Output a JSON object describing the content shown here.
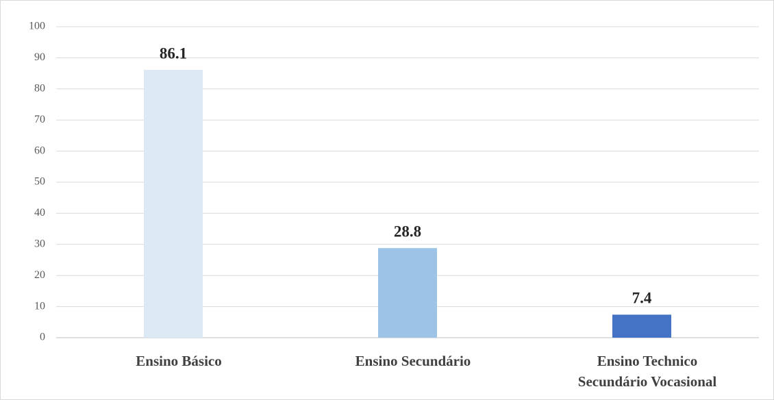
{
  "chart_data": {
    "type": "bar",
    "categories": [
      "Ensino Básico",
      "Ensino Secundário",
      "Ensino Technico Secundário Vocasional"
    ],
    "values": [
      86.1,
      28.8,
      7.4
    ],
    "colors": [
      "#dde8f5",
      "#9dc3e6",
      "#4472c4"
    ],
    "ylim": [
      0,
      100
    ],
    "yticks": [
      0,
      10,
      20,
      30,
      40,
      50,
      60,
      70,
      80,
      90,
      100
    ],
    "grid": true,
    "data_labels": true
  }
}
